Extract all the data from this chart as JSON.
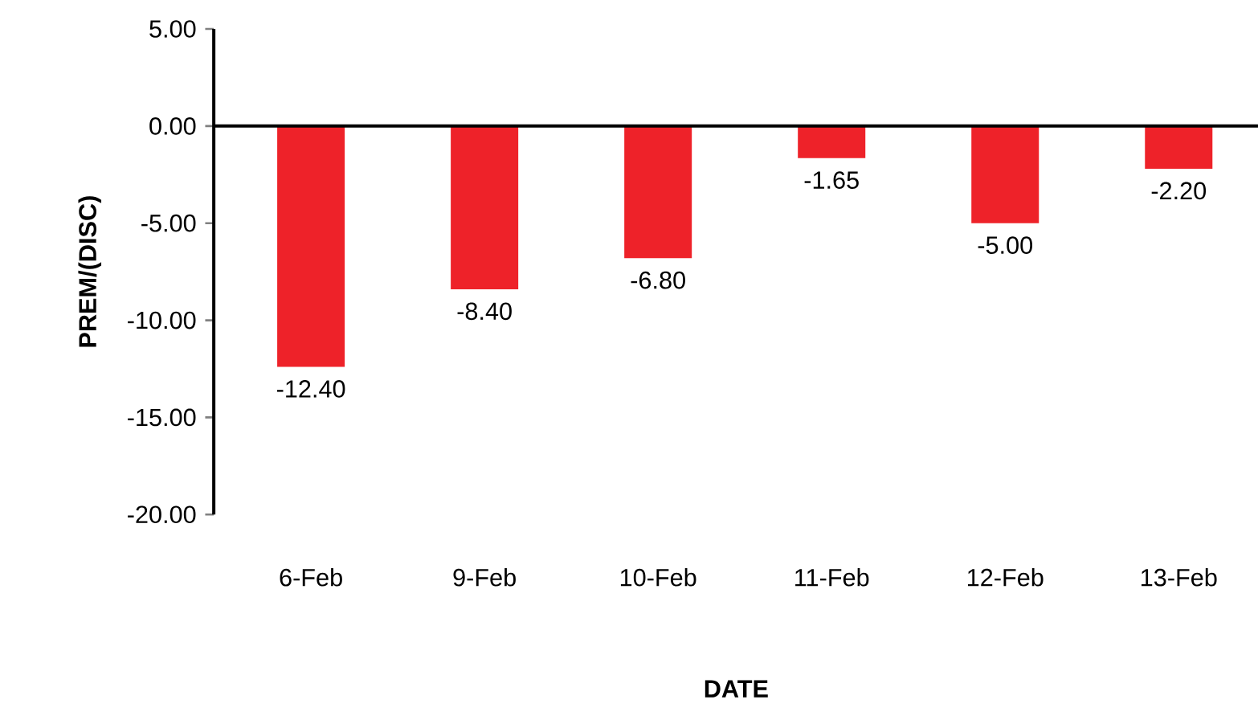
{
  "chart_data": {
    "type": "bar",
    "xlabel": "DATE",
    "ylabel": "PREM/(DISC)",
    "categories": [
      "6-Feb",
      "9-Feb",
      "10-Feb",
      "11-Feb",
      "12-Feb",
      "13-Feb"
    ],
    "values": [
      -12.4,
      -8.4,
      -6.8,
      -1.65,
      -5.0,
      -2.2
    ],
    "value_labels": [
      "-12.40",
      "-8.40",
      "-6.80",
      "-1.65",
      "-5.00",
      "-2.20"
    ],
    "color": "#ee2229",
    "ylim": [
      -20,
      5
    ],
    "yticks": [
      {
        "value": 5,
        "label": "5.00"
      },
      {
        "value": 0,
        "label": "0.00"
      },
      {
        "value": -5,
        "label": "-5.00"
      },
      {
        "value": -10,
        "label": "-10.00"
      },
      {
        "value": -15,
        "label": "-15.00"
      },
      {
        "value": -20,
        "label": "-20.00"
      }
    ]
  }
}
